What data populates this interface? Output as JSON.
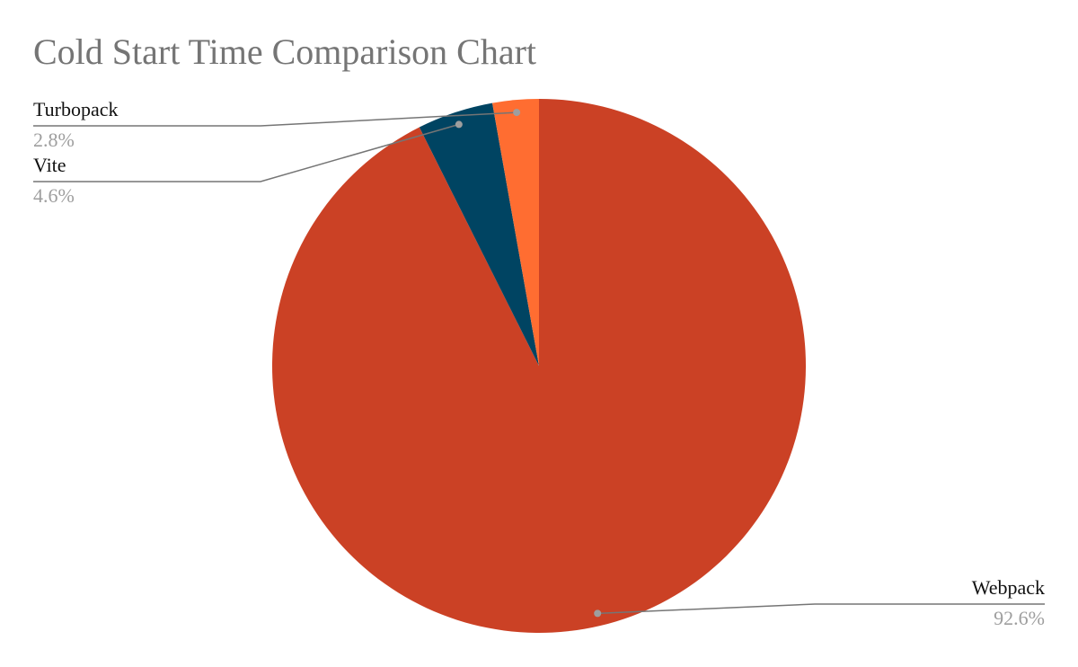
{
  "chart_data": {
    "type": "pie",
    "title": "Cold Start Time Comparison Chart",
    "categories": [
      "Webpack",
      "Vite",
      "Turbopack"
    ],
    "values": [
      92.6,
      4.6,
      2.8
    ],
    "value_labels": [
      "92.6%",
      "4.6%",
      "2.8%"
    ],
    "colors": [
      "#cb4125",
      "#004462",
      "#ff6d31"
    ]
  }
}
